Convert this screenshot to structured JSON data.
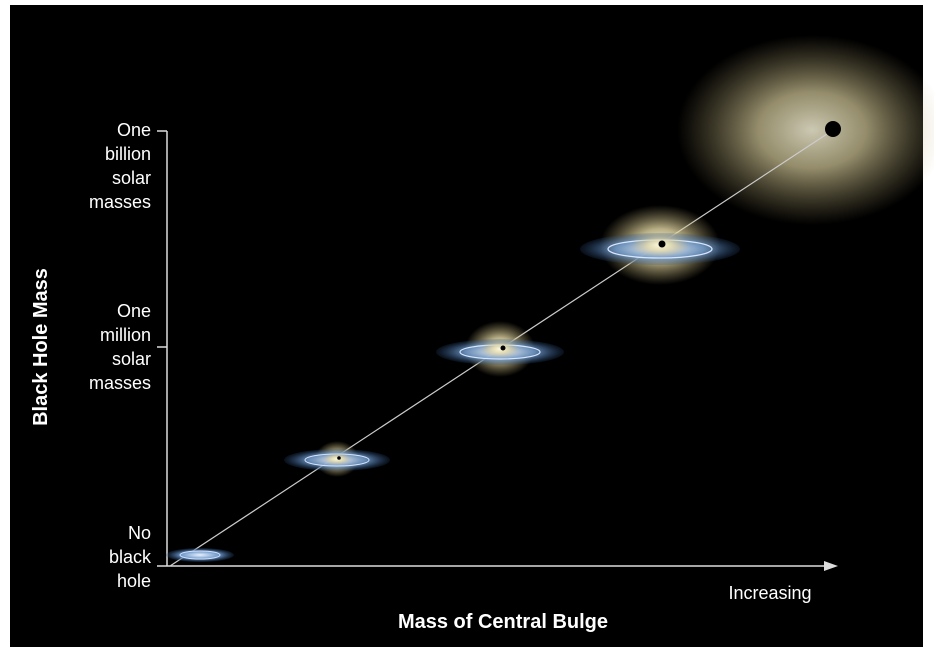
{
  "y_axis": {
    "title": "Black Hole Mass",
    "ticks": [
      {
        "lines": [
          "One",
          "billion",
          "solar",
          "masses"
        ]
      },
      {
        "lines": [
          "One",
          "million",
          "solar",
          "masses"
        ]
      },
      {
        "lines": [
          "No",
          "black",
          "hole"
        ]
      }
    ]
  },
  "x_axis": {
    "title": "Mass of Central Bulge",
    "direction": "Increasing"
  }
}
